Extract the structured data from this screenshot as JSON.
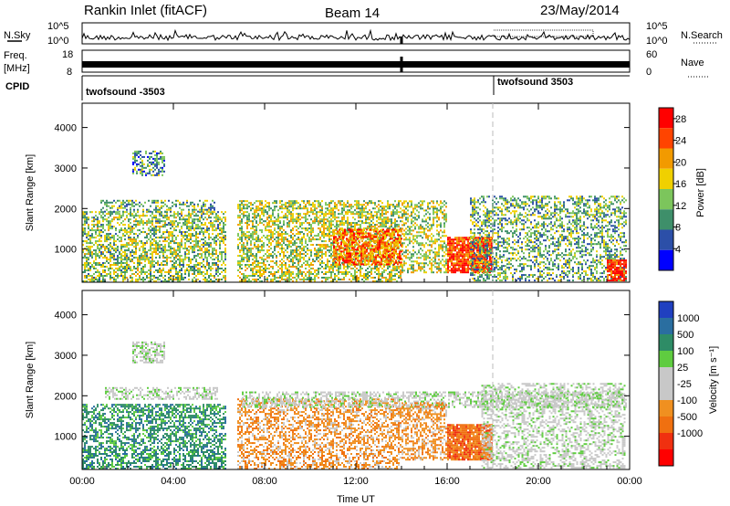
{
  "header": {
    "radar": "Rankin Inlet (fitACF)",
    "beam": "Beam 14",
    "date": "23/May/2014"
  },
  "strip_labels": {
    "nsky": "N.Sky",
    "nsearch": "N.Search",
    "freq_line1": "Freq.",
    "freq_line2": "[MHz]",
    "nave": "Nave",
    "cpid": "CPID"
  },
  "strip_ticks": {
    "noise_left": [
      "10^5",
      "10^0"
    ],
    "noise_right": [
      "10^5",
      "10^0"
    ],
    "freq_left": [
      "18",
      "8"
    ],
    "nave_right": [
      "60",
      "0"
    ]
  },
  "cpid_segments": [
    {
      "label": "twofsound -3503",
      "start_hour": 0
    },
    {
      "label": "twofsound 3503",
      "start_hour": 18
    }
  ],
  "colors": {
    "power_scale": [
      "#0000ff",
      "#2c4fa8",
      "#3e8f6a",
      "#7cc55c",
      "#f0d000",
      "#f29a00",
      "#ff4400",
      "#ff0000"
    ],
    "velocity_scale": [
      "#2040c0",
      "#2a6ea0",
      "#2e8c66",
      "#5fcc40",
      "#c8c8c8",
      "#c8c8c8",
      "#f09020",
      "#f07010",
      "#f03010",
      "#ff0000"
    ],
    "ground_scatter": "#bbbbbb"
  },
  "chart_data": [
    {
      "type": "heatmap",
      "panel": "power",
      "ylabel": "Slant Range [km]",
      "ylim": [
        180,
        4600
      ],
      "xlim_hours": [
        0,
        24
      ],
      "x_ticks": [
        "00:00",
        "04:00",
        "08:00",
        "12:00",
        "16:00",
        "20:00",
        "00:00"
      ],
      "y_ticks": [
        "1000",
        "2000",
        "3000",
        "4000"
      ],
      "colorbar": {
        "label": "Power [dB]",
        "range": [
          0,
          30
        ],
        "ticks": [
          "4",
          "8",
          "12",
          "16",
          "20",
          "24",
          "28"
        ]
      },
      "scatter_regions": [
        {
          "t0": 0.0,
          "t1": 6.3,
          "r0": 180,
          "r1": 1900,
          "level": 14,
          "density": 0.55
        },
        {
          "t0": 0.8,
          "t1": 5.8,
          "r0": 1900,
          "r1": 2200,
          "level": 12,
          "density": 0.4
        },
        {
          "t0": 2.2,
          "t1": 3.6,
          "r0": 2800,
          "r1": 3400,
          "level": 10,
          "density": 0.5
        },
        {
          "t0": 6.8,
          "t1": 14.0,
          "r0": 180,
          "r1": 2200,
          "level": 16,
          "density": 0.55
        },
        {
          "t0": 11.0,
          "t1": 14.0,
          "r0": 600,
          "r1": 1500,
          "level": 24,
          "density": 0.7
        },
        {
          "t0": 14.0,
          "t1": 16.0,
          "r0": 400,
          "r1": 2200,
          "level": 16,
          "density": 0.45
        },
        {
          "t0": 16.0,
          "t1": 18.0,
          "r0": 400,
          "r1": 1300,
          "level": 27,
          "density": 0.9
        },
        {
          "t0": 17.0,
          "t1": 23.8,
          "r0": 200,
          "r1": 2300,
          "level": 12,
          "density": 0.45
        },
        {
          "t0": 23.0,
          "t1": 23.8,
          "r0": 200,
          "r1": 700,
          "level": 28,
          "density": 0.8
        }
      ]
    },
    {
      "type": "heatmap",
      "panel": "velocity",
      "ylabel": "Slant Range [km]",
      "xlabel": "Time UT",
      "ylim": [
        180,
        4600
      ],
      "xlim_hours": [
        0,
        24
      ],
      "x_ticks": [
        "00:00",
        "04:00",
        "08:00",
        "12:00",
        "16:00",
        "20:00",
        "00:00"
      ],
      "y_ticks": [
        "1000",
        "2000",
        "3000",
        "4000"
      ],
      "colorbar": {
        "label": "Velocity [m s⁻¹]",
        "ticks": [
          "1000",
          "500",
          "100",
          "25",
          "-25",
          "-100",
          "-500",
          "-1000"
        ]
      },
      "scatter_regions": [
        {
          "t0": 0.0,
          "t1": 6.3,
          "r0": 180,
          "r1": 1800,
          "vclass": 2,
          "density": 0.55
        },
        {
          "t0": 1.0,
          "t1": 6.0,
          "r0": 1900,
          "r1": 2200,
          "vclass": 4,
          "density": 0.45
        },
        {
          "t0": 2.2,
          "t1": 3.6,
          "r0": 2800,
          "r1": 3300,
          "vclass": 4,
          "density": 0.6
        },
        {
          "t0": 6.8,
          "t1": 14.0,
          "r0": 180,
          "r1": 1900,
          "vclass": 6,
          "density": 0.5
        },
        {
          "t0": 7.0,
          "t1": 23.8,
          "r0": 1700,
          "r1": 2100,
          "vclass": 4,
          "density": 0.55
        },
        {
          "t0": 14.0,
          "t1": 16.0,
          "r0": 400,
          "r1": 1800,
          "vclass": 6,
          "density": 0.5
        },
        {
          "t0": 16.0,
          "t1": 18.0,
          "r0": 400,
          "r1": 1300,
          "vclass": 7,
          "density": 0.9
        },
        {
          "t0": 17.5,
          "t1": 23.8,
          "r0": 200,
          "r1": 2300,
          "vclass": 4,
          "density": 0.45
        }
      ]
    }
  ]
}
